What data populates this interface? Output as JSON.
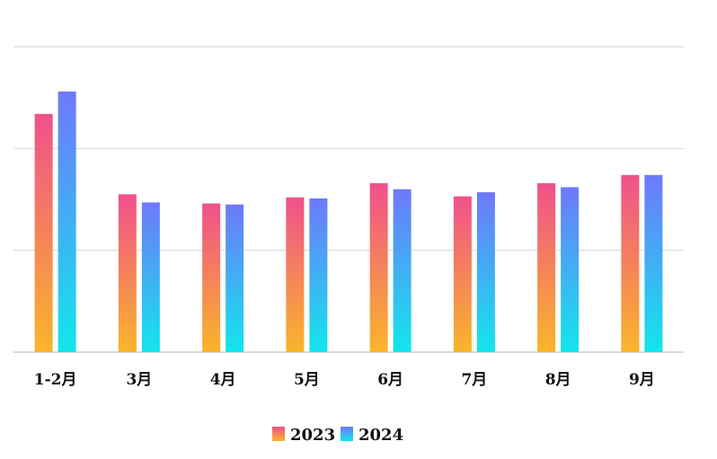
{
  "chart_data": {
    "type": "bar",
    "categories": [
      "1-2月",
      "3月",
      "4月",
      "5月",
      "6月",
      "7月",
      "8月",
      "9月"
    ],
    "series": [
      {
        "name": "2023",
        "values": [
          2340,
          1550,
          1460,
          1520,
          1660,
          1530,
          1660,
          1740
        ]
      },
      {
        "name": "2024",
        "values": [
          2560,
          1470,
          1450,
          1510,
          1600,
          1570,
          1620,
          1740
        ]
      }
    ],
    "ylim": [
      0,
      3000
    ],
    "grid": true,
    "y_tick_labels_visible": false,
    "legend_position": "bottom-center",
    "colors": {
      "2023": {
        "top": "#f0508c",
        "bottom": "#f9b52a"
      },
      "2024": {
        "top": "#6f78fb",
        "bottom": "#12e6ec"
      }
    }
  }
}
